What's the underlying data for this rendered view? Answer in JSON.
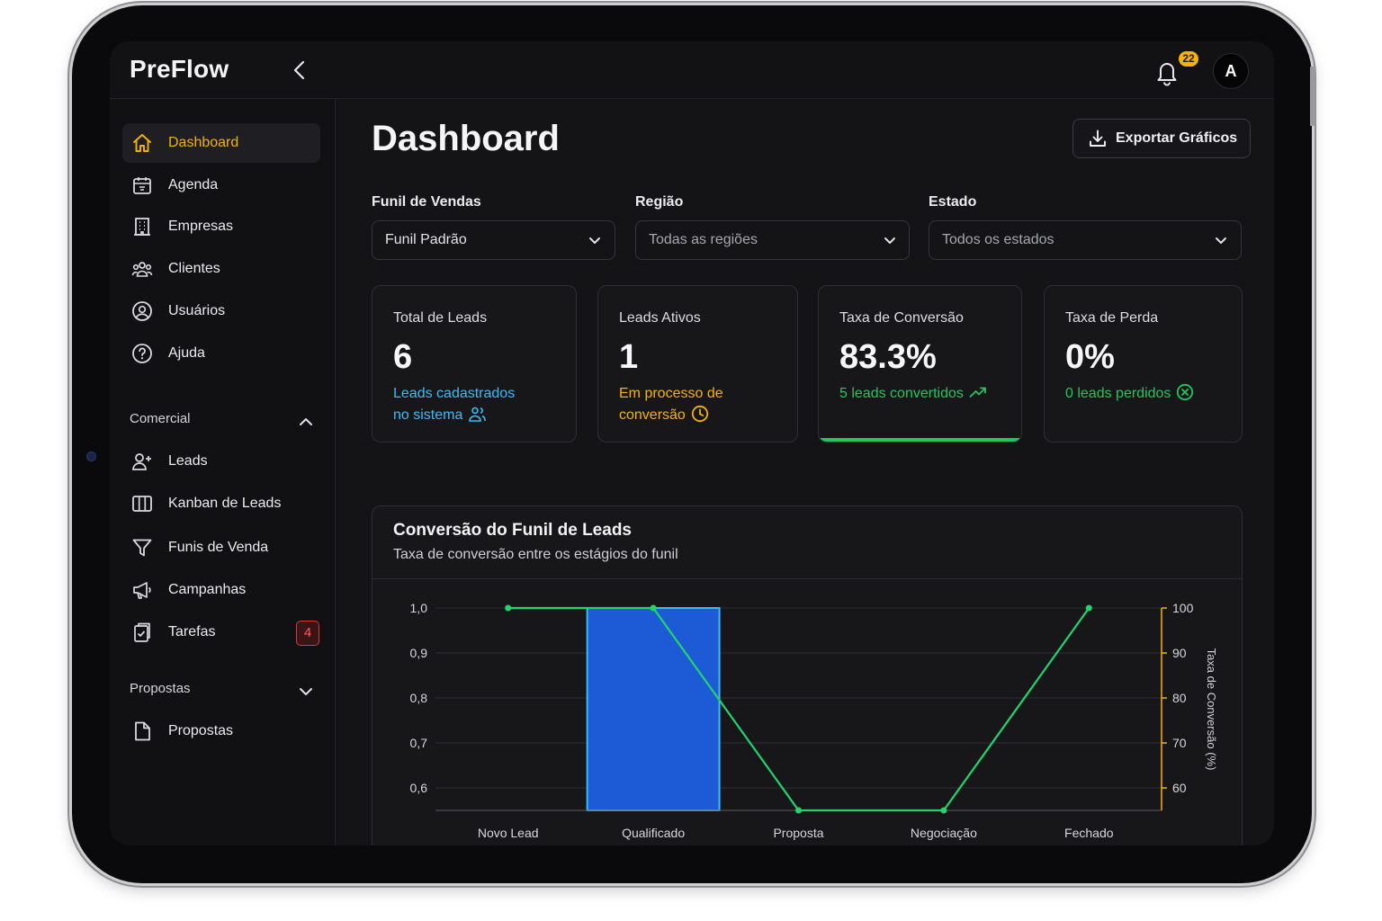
{
  "app": {
    "name": "PreFlow"
  },
  "header": {
    "notifications_count": "22",
    "avatar_initial": "A"
  },
  "sidebar": {
    "items": [
      {
        "label": "Dashboard",
        "icon": "home-icon",
        "active": true
      },
      {
        "label": "Agenda",
        "icon": "calendar-icon"
      },
      {
        "label": "Empresas",
        "icon": "building-icon"
      },
      {
        "label": "Clientes",
        "icon": "users-icon"
      },
      {
        "label": "Usuários",
        "icon": "user-circle-icon"
      },
      {
        "label": "Ajuda",
        "icon": "help-icon"
      }
    ],
    "sections": [
      {
        "title": "Comercial",
        "expanded": true,
        "items": [
          {
            "label": "Leads",
            "icon": "user-plus-icon"
          },
          {
            "label": "Kanban de Leads",
            "icon": "kanban-icon"
          },
          {
            "label": "Funis de Venda",
            "icon": "funnel-icon"
          },
          {
            "label": "Campanhas",
            "icon": "megaphone-icon"
          },
          {
            "label": "Tarefas",
            "icon": "clipboard-icon",
            "badge": "4"
          }
        ]
      },
      {
        "title": "Propostas",
        "expanded": false,
        "items": [
          {
            "label": "Propostas",
            "icon": "document-icon"
          }
        ]
      }
    ]
  },
  "main": {
    "title": "Dashboard",
    "export_label": "Exportar Gráficos",
    "filters": [
      {
        "label": "Funil de Vendas",
        "value": "Funil Padrão"
      },
      {
        "label": "Região",
        "placeholder": "Todas as regiões"
      },
      {
        "label": "Estado",
        "placeholder": "Todos os estados"
      }
    ],
    "cards": [
      {
        "title": "Total de Leads",
        "value": "6",
        "sub": [
          "Leads cadastrados",
          "no sistema"
        ],
        "color": "#38bdf8",
        "icon": "users-icon"
      },
      {
        "title": "Leads Ativos",
        "value": "1",
        "sub": [
          "Em processo de",
          "conversão"
        ],
        "color": "#f5b301",
        "icon": "clock-icon"
      },
      {
        "title": "Taxa de Conversão",
        "value": "83.3%",
        "sub": [
          "5 leads convertidos"
        ],
        "color": "#22c55e",
        "icon": "trending-up-icon",
        "highlighted": true
      },
      {
        "title": "Taxa de Perda",
        "value": "0%",
        "sub": [
          "0 leads perdidos"
        ],
        "color": "#22c55e",
        "icon": "x-circle-icon"
      }
    ],
    "chart": {
      "title": "Conversão do Funil de Leads",
      "subtitle": "Taxa de conversão entre os estágios do funil"
    }
  },
  "chart_data": {
    "type": "bar",
    "categories": [
      "Novo Lead",
      "Qualificado",
      "Proposta",
      "Negociação",
      "Fechado"
    ],
    "series": [
      {
        "type": "bar",
        "axis": "left",
        "values": [
          null,
          1.0,
          null,
          null,
          null
        ],
        "color": "#1d5bd6",
        "stroke": "#38bdf8"
      },
      {
        "type": "line",
        "axis": "right",
        "values": [
          100,
          100,
          55,
          55,
          100
        ],
        "color": "#22d36e"
      }
    ],
    "left_axis": {
      "ticks": [
        "1,0",
        "0,9",
        "0,8",
        "0,7",
        "0,6"
      ],
      "ylim": [
        0.55,
        1.0
      ]
    },
    "right_axis": {
      "label": "Taxa de Conversão (%)",
      "ticks": [
        "100",
        "90",
        "80",
        "70",
        "60"
      ],
      "ylim": [
        55,
        100
      ],
      "color": "#f5b301"
    },
    "grid": true
  }
}
